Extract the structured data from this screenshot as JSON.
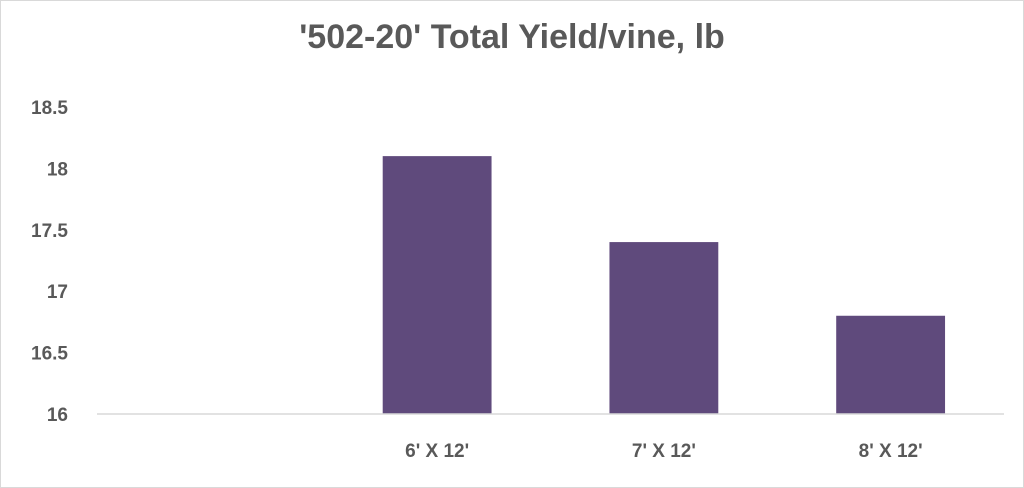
{
  "chart_data": {
    "type": "bar",
    "title": "'502-20' Total Yield/vine, lb",
    "xlabel": "",
    "ylabel": "",
    "categories": [
      "",
      "6' X 12'",
      "7' X 12'",
      "8' X 12'"
    ],
    "values": [
      null,
      18.1,
      17.4,
      16.8
    ],
    "ylim": [
      16,
      18.5
    ],
    "yticks": [
      "16",
      "16.5",
      "17",
      "17.5",
      "18",
      "18.5"
    ],
    "grid": false,
    "legend": "none",
    "colors": {
      "bar": "#5f4a7c",
      "text": "#595959",
      "axis": "#d9d9d9"
    }
  }
}
